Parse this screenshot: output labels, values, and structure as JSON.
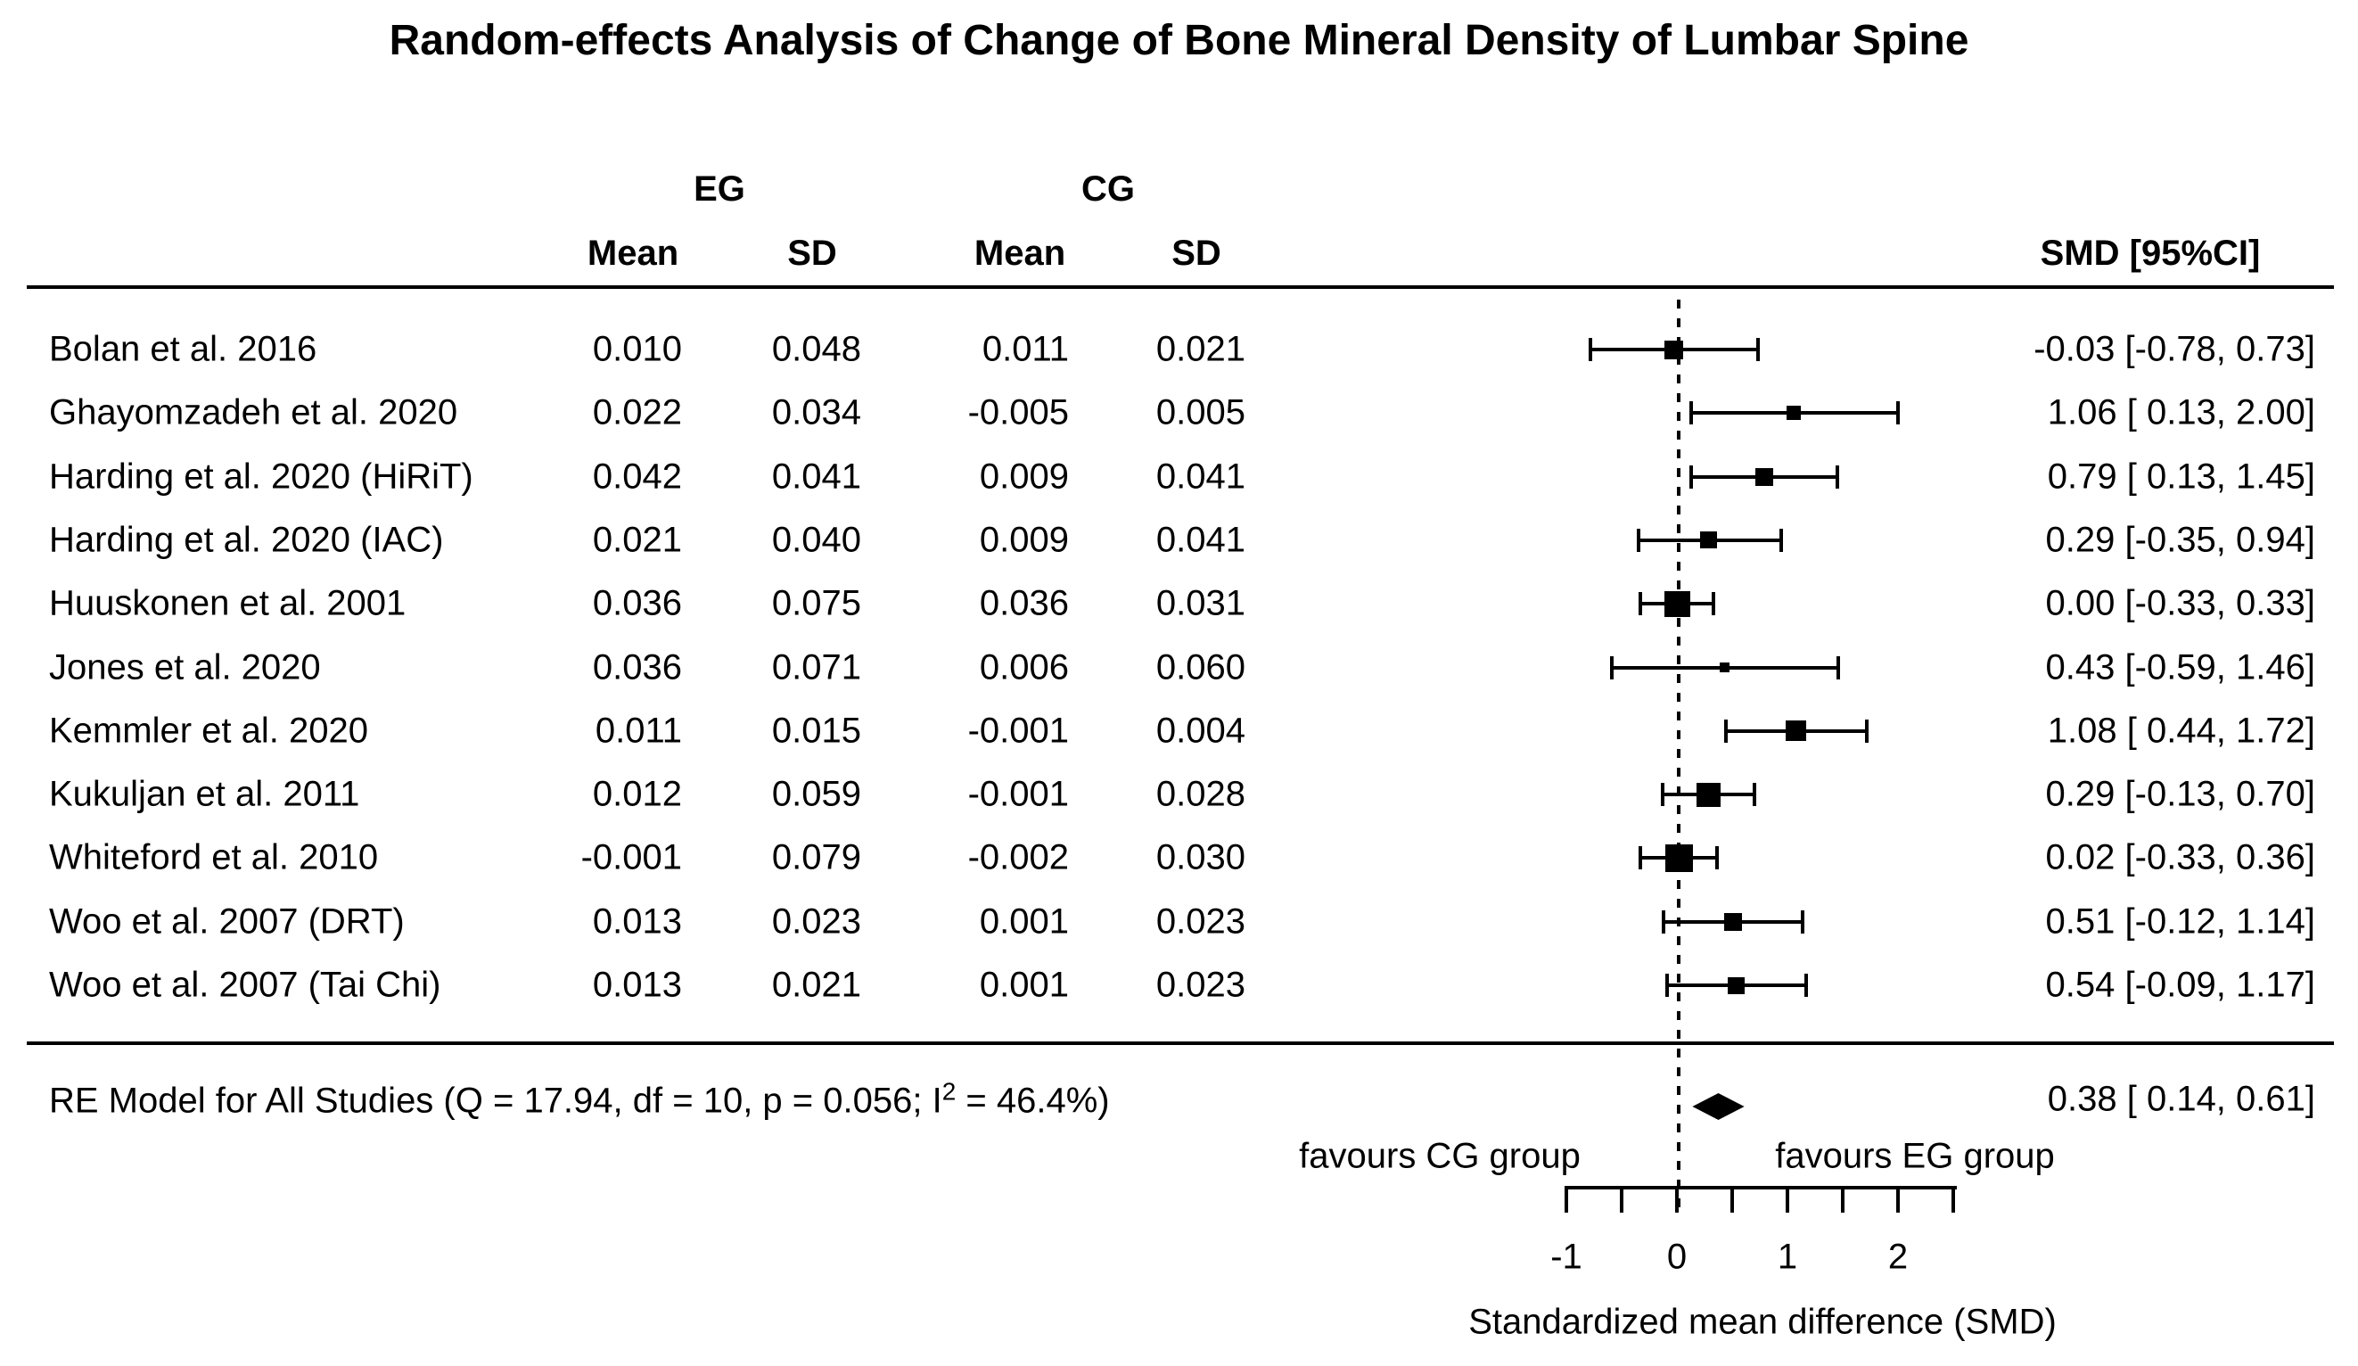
{
  "title": "Random-effects Analysis of Change of Bone Mineral Density of Lumbar Spine",
  "headers": {
    "eg_group": "EG",
    "cg_group": "CG",
    "eg_mean": "Mean",
    "eg_sd": "SD",
    "cg_mean": "Mean",
    "cg_sd": "SD",
    "smd_ci": "SMD [95%CI]"
  },
  "colors": {
    "foreground": "#000000",
    "background": "#ffffff"
  },
  "chart_data": {
    "type": "forest",
    "x_axis": {
      "label": "Standardized mean difference (SMD)",
      "range": [
        -1,
        2.5
      ],
      "tick_step": 0.5,
      "labeled_ticks": [
        {
          "value": -1,
          "label": "-1"
        },
        {
          "value": 0,
          "label": "0"
        },
        {
          "value": 1,
          "label": "1"
        },
        {
          "value": 2,
          "label": "2"
        }
      ],
      "zero_line": 0
    },
    "favours_left": "favours CG group",
    "favours_right": "favours EG group",
    "studies": [
      {
        "label": "Bolan et al. 2016",
        "eg_mean": "0.010",
        "eg_sd": "0.048",
        "cg_mean": "0.011",
        "cg_sd": "0.021",
        "smd": -0.03,
        "ci_low": -0.78,
        "ci_high": 0.73,
        "smd_label": "-0.03 [-0.78, 0.73]",
        "marker_size": 21
      },
      {
        "label": "Ghayomzadeh et al. 2020",
        "eg_mean": "0.022",
        "eg_sd": "0.034",
        "cg_mean": "-0.005",
        "cg_sd": "0.005",
        "smd": 1.06,
        "ci_low": 0.13,
        "ci_high": 2.0,
        "smd_label": "1.06 [ 0.13, 2.00]",
        "marker_size": 16
      },
      {
        "label": "Harding et al. 2020 (HiRiT)",
        "eg_mean": "0.042",
        "eg_sd": "0.041",
        "cg_mean": "0.009",
        "cg_sd": "0.041",
        "smd": 0.79,
        "ci_low": 0.13,
        "ci_high": 1.45,
        "smd_label": "0.79 [ 0.13, 1.45]",
        "marker_size": 20
      },
      {
        "label": "Harding et al. 2020 (IAC)",
        "eg_mean": "0.021",
        "eg_sd": "0.040",
        "cg_mean": "0.009",
        "cg_sd": "0.041",
        "smd": 0.29,
        "ci_low": -0.35,
        "ci_high": 0.94,
        "smd_label": "0.29 [-0.35, 0.94]",
        "marker_size": 19
      },
      {
        "label": "Huuskonen et al. 2001",
        "eg_mean": "0.036",
        "eg_sd": "0.075",
        "cg_mean": "0.036",
        "cg_sd": "0.031",
        "smd": 0.0,
        "ci_low": -0.33,
        "ci_high": 0.33,
        "smd_label": "0.00 [-0.33, 0.33]",
        "marker_size": 29
      },
      {
        "label": "Jones et al. 2020",
        "eg_mean": "0.036",
        "eg_sd": "0.071",
        "cg_mean": "0.006",
        "cg_sd": "0.060",
        "smd": 0.43,
        "ci_low": -0.59,
        "ci_high": 1.46,
        "smd_label": "0.43 [-0.59, 1.46]",
        "marker_size": 11
      },
      {
        "label": "Kemmler et al. 2020",
        "eg_mean": "0.011",
        "eg_sd": "0.015",
        "cg_mean": "-0.001",
        "cg_sd": "0.004",
        "smd": 1.08,
        "ci_low": 0.44,
        "ci_high": 1.72,
        "smd_label": "1.08 [ 0.44, 1.72]",
        "marker_size": 23
      },
      {
        "label": "Kukuljan et al. 2011",
        "eg_mean": "0.012",
        "eg_sd": "0.059",
        "cg_mean": "-0.001",
        "cg_sd": "0.028",
        "smd": 0.29,
        "ci_low": -0.13,
        "ci_high": 0.7,
        "smd_label": "0.29 [-0.13, 0.70]",
        "marker_size": 27
      },
      {
        "label": "Whiteford et al. 2010",
        "eg_mean": "-0.001",
        "eg_sd": "0.079",
        "cg_mean": "-0.002",
        "cg_sd": "0.030",
        "smd": 0.02,
        "ci_low": -0.33,
        "ci_high": 0.36,
        "smd_label": "0.02 [-0.33, 0.36]",
        "marker_size": 31
      },
      {
        "label": "Woo et al. 2007 (DRT)",
        "eg_mean": "0.013",
        "eg_sd": "0.023",
        "cg_mean": "0.001",
        "cg_sd": "0.023",
        "smd": 0.51,
        "ci_low": -0.12,
        "ci_high": 1.14,
        "smd_label": "0.51 [-0.12, 1.14]",
        "marker_size": 20
      },
      {
        "label": "Woo et al. 2007 (Tai Chi)",
        "eg_mean": "0.013",
        "eg_sd": "0.021",
        "cg_mean": "0.001",
        "cg_sd": "0.023",
        "smd": 0.54,
        "ci_low": -0.09,
        "ci_high": 1.17,
        "smd_label": "0.54 [-0.09, 1.17]",
        "marker_size": 19
      }
    ],
    "summary": {
      "label_pre": "RE Model for All Studies (Q = 17.94, df = 10, p = 0.056; I",
      "label_sup": "2",
      "label_post": " = 46.4%)",
      "smd": 0.38,
      "ci_low": 0.14,
      "ci_high": 0.61,
      "smd_label": "0.38 [ 0.14, 0.61]"
    }
  }
}
